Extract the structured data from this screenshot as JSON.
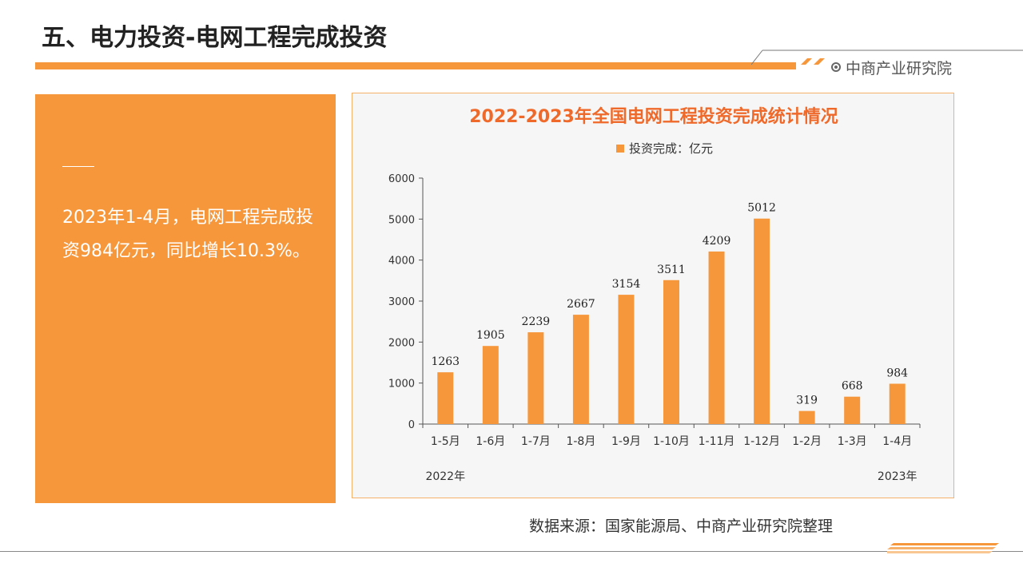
{
  "page": {
    "title": "五、电力投资-电网工程完成投资",
    "brand": "中商产业研究院",
    "source": "数据来源：国家能源局、中商产业研究院整理"
  },
  "summary": {
    "text": "2023年1-4月，电网工程完成投资984亿元，同比增长10.3%。"
  },
  "colors": {
    "accent": "#f7973c",
    "title_red": "#ef6a2a"
  },
  "icons": {
    "brand": "target-icon"
  },
  "chart_data": {
    "type": "bar",
    "title": "2022-2023年全国电网工程投资完成统计情况",
    "legend": "投资完成：亿元",
    "legend_position": "top-center",
    "categories": [
      "1-5月",
      "1-6月",
      "1-7月",
      "1-8月",
      "1-9月",
      "1-10月",
      "1-11月",
      "1-12月",
      "1-2月",
      "1-3月",
      "1-4月"
    ],
    "values": [
      1263,
      1905,
      2239,
      2667,
      3154,
      3511,
      4209,
      5012,
      319,
      668,
      984
    ],
    "year_labels": [
      "2022年",
      "2023年"
    ],
    "ylim": [
      0,
      6000
    ],
    "yticks": [
      0,
      1000,
      2000,
      3000,
      4000,
      5000,
      6000
    ],
    "grid": false
  }
}
